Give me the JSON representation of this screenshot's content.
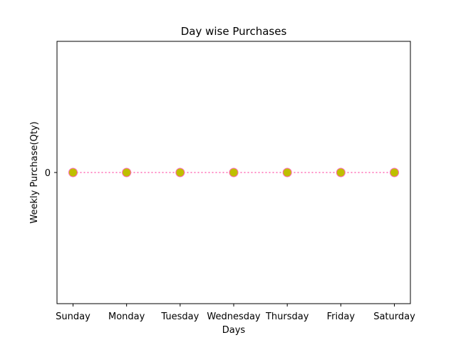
{
  "chart_data": {
    "type": "line",
    "title": "Day wise Purchases",
    "xlabel": "Days",
    "ylabel": "Weekly Purchase(Qty)",
    "categories": [
      "Sunday",
      "Monday",
      "Tuesday",
      "Wednesday",
      "Thursday",
      "Friday",
      "Saturday"
    ],
    "series": [
      {
        "values": [
          0,
          0,
          0,
          0,
          0,
          0,
          0
        ],
        "line_color": "#ff69b4",
        "line_style": "dotted",
        "marker": "circle",
        "marker_face_color": "#bfbf00",
        "marker_edge_color": "#ff69b4"
      }
    ],
    "y_ticks": [
      0
    ],
    "y_tick_labels": [
      "0"
    ],
    "grid": false,
    "legend": "none"
  }
}
